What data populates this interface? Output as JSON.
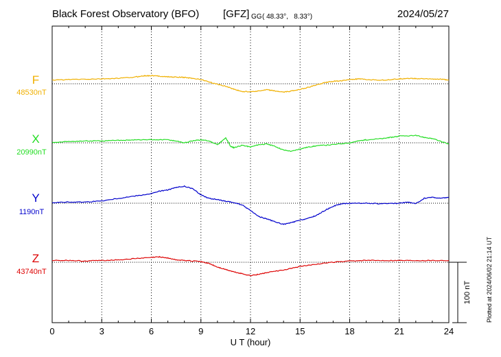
{
  "header": {
    "title": "Black Forest Observatory (BFO)",
    "org": "[GFZ]",
    "coords_prefix": "GG",
    "coords": "( 48.33°,   8.33°)",
    "date": "2024/05/27",
    "plotted": "Plotted at 2024/06/02 21:14 UT"
  },
  "chart_data": {
    "type": "line",
    "xlabel": "U T (hour)",
    "xlim": [
      0,
      24
    ],
    "xticks": [
      "0",
      "3",
      "6",
      "9",
      "12",
      "15",
      "18",
      "21",
      "24"
    ],
    "scale_bar": "100 nT",
    "colors": {
      "F": "#f0b000",
      "X": "#22dd22",
      "Y": "#0000cc",
      "Z": "#dd0000"
    },
    "series": [
      {
        "name": "F",
        "baseline_label": "48530nT",
        "points": [
          [
            0,
            6
          ],
          [
            1,
            7
          ],
          [
            2,
            7.5
          ],
          [
            3,
            8
          ],
          [
            4,
            9
          ],
          [
            5,
            11
          ],
          [
            5.5,
            13
          ],
          [
            6,
            13.5
          ],
          [
            6.5,
            12.5
          ],
          [
            7,
            11.5
          ],
          [
            7.5,
            11
          ],
          [
            8,
            10.5
          ],
          [
            8.5,
            9
          ],
          [
            9,
            7
          ],
          [
            9.5,
            3
          ],
          [
            10,
            -1
          ],
          [
            10.5,
            -4
          ],
          [
            11,
            -9
          ],
          [
            11.5,
            -13
          ],
          [
            12,
            -13
          ],
          [
            12.5,
            -12
          ],
          [
            13,
            -10
          ],
          [
            13.5,
            -12
          ],
          [
            14,
            -14
          ],
          [
            14.5,
            -12
          ],
          [
            15,
            -9
          ],
          [
            15.5,
            -6
          ],
          [
            16,
            -2
          ],
          [
            16.5,
            2
          ],
          [
            17,
            4
          ],
          [
            17.5,
            5
          ],
          [
            18,
            7
          ],
          [
            18.5,
            8
          ],
          [
            19,
            7
          ],
          [
            20,
            6
          ],
          [
            20.5,
            7
          ],
          [
            21,
            8
          ],
          [
            21.5,
            9
          ],
          [
            22,
            8.5
          ],
          [
            23,
            8
          ],
          [
            23.5,
            7.5
          ],
          [
            24,
            6
          ]
        ]
      },
      {
        "name": "X",
        "baseline_label": "20990nT",
        "points": [
          [
            0,
            1
          ],
          [
            1,
            2
          ],
          [
            2,
            3
          ],
          [
            3,
            3
          ],
          [
            4,
            4
          ],
          [
            5,
            5
          ],
          [
            6,
            5
          ],
          [
            7,
            5
          ],
          [
            7.5,
            3
          ],
          [
            8,
            0
          ],
          [
            8.5,
            3
          ],
          [
            9,
            5
          ],
          [
            9.5,
            3
          ],
          [
            10,
            -3
          ],
          [
            10.5,
            8
          ],
          [
            10.8,
            -6
          ],
          [
            11,
            -8
          ],
          [
            11.5,
            -4
          ],
          [
            12,
            -7
          ],
          [
            12.5,
            -3
          ],
          [
            13,
            -2
          ],
          [
            13.5,
            -6
          ],
          [
            14,
            -12
          ],
          [
            14.5,
            -14
          ],
          [
            15,
            -10
          ],
          [
            15.5,
            -7
          ],
          [
            16,
            -5
          ],
          [
            17,
            -3
          ],
          [
            18,
            0
          ],
          [
            18.5,
            3
          ],
          [
            19,
            5
          ],
          [
            20,
            7
          ],
          [
            20.5,
            9
          ],
          [
            21,
            11
          ],
          [
            22,
            12
          ],
          [
            22.5,
            9
          ],
          [
            23,
            7
          ],
          [
            24,
            -2
          ]
        ]
      },
      {
        "name": "Y",
        "baseline_label": "1190nT",
        "points": [
          [
            0,
            1
          ],
          [
            1,
            2
          ],
          [
            2,
            2
          ],
          [
            3,
            4
          ],
          [
            4,
            8
          ],
          [
            5,
            12
          ],
          [
            6,
            16
          ],
          [
            6.5,
            20
          ],
          [
            7,
            22
          ],
          [
            7.5,
            26
          ],
          [
            8,
            28
          ],
          [
            8.5,
            24
          ],
          [
            9,
            14
          ],
          [
            9.5,
            8
          ],
          [
            10,
            6
          ],
          [
            10.5,
            3
          ],
          [
            11,
            1
          ],
          [
            11.5,
            -3
          ],
          [
            12,
            -12
          ],
          [
            12.5,
            -22
          ],
          [
            13,
            -26
          ],
          [
            13.5,
            -31
          ],
          [
            14,
            -35
          ],
          [
            14.5,
            -32
          ],
          [
            15,
            -28
          ],
          [
            15.5,
            -25
          ],
          [
            16,
            -20
          ],
          [
            16.5,
            -12
          ],
          [
            17,
            -5
          ],
          [
            17.5,
            -1
          ],
          [
            18,
            0
          ],
          [
            19,
            0
          ],
          [
            20,
            -1
          ],
          [
            21,
            0
          ],
          [
            21.5,
            2
          ],
          [
            22,
            -1
          ],
          [
            22.5,
            8
          ],
          [
            23,
            10
          ],
          [
            23.5,
            8
          ],
          [
            24,
            10
          ]
        ]
      },
      {
        "name": "Z",
        "baseline_label": "43740nT",
        "points": [
          [
            0,
            3
          ],
          [
            1,
            3
          ],
          [
            2,
            2
          ],
          [
            3,
            3
          ],
          [
            4,
            4
          ],
          [
            5,
            6
          ],
          [
            6,
            8
          ],
          [
            6.5,
            9
          ],
          [
            7,
            7
          ],
          [
            7.5,
            4
          ],
          [
            8,
            3
          ],
          [
            9,
            1
          ],
          [
            9.5,
            -2
          ],
          [
            10,
            -8
          ],
          [
            10.5,
            -12
          ],
          [
            11,
            -16
          ],
          [
            11.5,
            -19
          ],
          [
            12,
            -22
          ],
          [
            12.5,
            -20
          ],
          [
            13,
            -17
          ],
          [
            14,
            -13
          ],
          [
            15,
            -7
          ],
          [
            16,
            -3
          ],
          [
            17,
            0
          ],
          [
            18,
            2
          ],
          [
            19,
            3
          ],
          [
            20,
            3
          ],
          [
            21,
            3
          ],
          [
            22,
            3
          ],
          [
            23,
            3
          ],
          [
            24,
            3
          ]
        ]
      }
    ]
  }
}
